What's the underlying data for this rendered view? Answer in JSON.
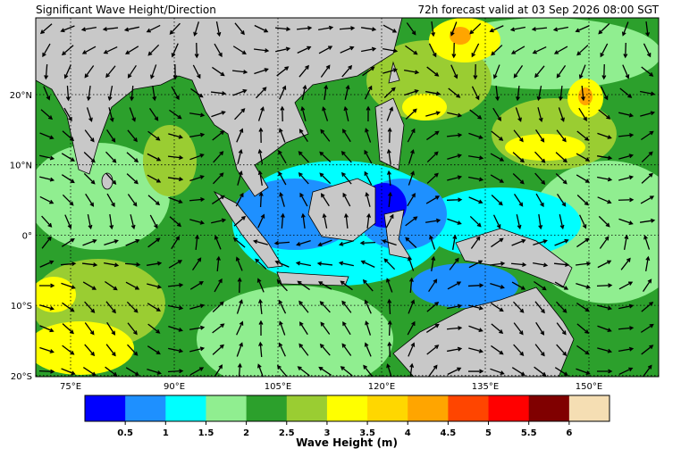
{
  "header": {
    "title": "Significant Wave Height/Direction",
    "valid_time": "72h forecast valid at 03 Sep 2026 08:00 SGT"
  },
  "map": {
    "lon_labels": [
      "75°E",
      "90°E",
      "105°E",
      "120°E",
      "135°E",
      "150°E"
    ],
    "lat_labels": [
      "20°N",
      "10°N",
      "0°",
      "10°S",
      "20°S"
    ]
  },
  "colorbar": {
    "label": "Wave Height (m)",
    "ticks": [
      0.5,
      1,
      1.5,
      2,
      2.5,
      3,
      3.5,
      4,
      4.5,
      5,
      5.5,
      6
    ],
    "colors": [
      "#0000ff",
      "#1e90ff",
      "#00ffff",
      "#90ee90",
      "#2ca02c",
      "#9acd32",
      "#ffff00",
      "#ffd700",
      "#ffa500",
      "#ff4500",
      "#ff0000",
      "#800000",
      "#f5deb3"
    ]
  }
}
